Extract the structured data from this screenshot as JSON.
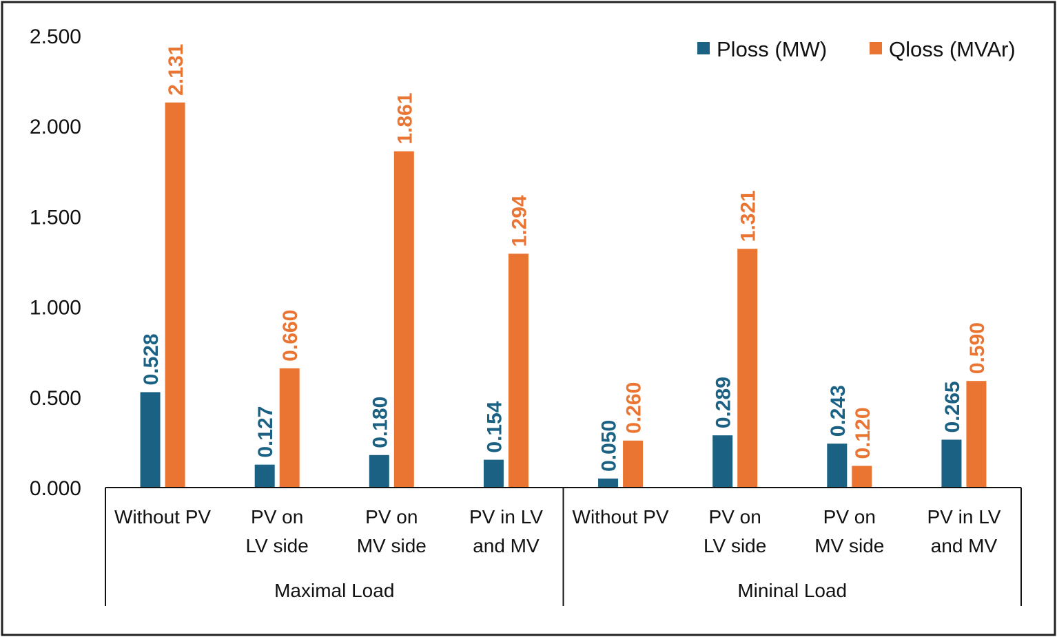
{
  "chart_data": {
    "type": "bar",
    "title": "",
    "xlabel": "",
    "ylabel": "",
    "ylim": [
      0,
      2.5
    ],
    "yticks": [
      "0.000",
      "0.500",
      "1.000",
      "1.500",
      "2.000",
      "2.500"
    ],
    "ytick_values": [
      0,
      0.5,
      1.0,
      1.5,
      2.0,
      2.5
    ],
    "grid": false,
    "legend_position": "top-right",
    "groups": [
      {
        "label": "Maximal Load",
        "categories": [
          "Without PV",
          "PV on LV side",
          "PV on MV side",
          "PV in LV and MV"
        ]
      },
      {
        "label": "Mininal Load",
        "categories": [
          "Without PV",
          "PV on LV side",
          "PV on MV side",
          "PV in LV and MV"
        ]
      }
    ],
    "categories": [
      [
        "Without PV"
      ],
      [
        "PV on",
        "LV side"
      ],
      [
        "PV on",
        "MV side"
      ],
      [
        "PV in LV",
        "and MV"
      ],
      [
        "Without PV"
      ],
      [
        "PV on",
        "LV side"
      ],
      [
        "PV on",
        "MV side"
      ],
      [
        "PV in LV",
        "and MV"
      ]
    ],
    "series": [
      {
        "name": "Ploss (MW)",
        "color": "#1a6184",
        "values": [
          0.528,
          0.127,
          0.18,
          0.154,
          0.05,
          0.289,
          0.243,
          0.265
        ],
        "labels": [
          "0.528",
          "0.127",
          "0.180",
          "0.154",
          "0.050",
          "0.289",
          "0.243",
          "0.265"
        ]
      },
      {
        "name": "Qloss (MVAr)",
        "color": "#ea7533",
        "values": [
          2.131,
          0.66,
          1.861,
          1.294,
          0.26,
          1.321,
          0.12,
          0.59
        ],
        "labels": [
          "2.131",
          "0.660",
          "1.861",
          "1.294",
          "0.260",
          "1.321",
          "0.120",
          "0.590"
        ]
      }
    ]
  }
}
